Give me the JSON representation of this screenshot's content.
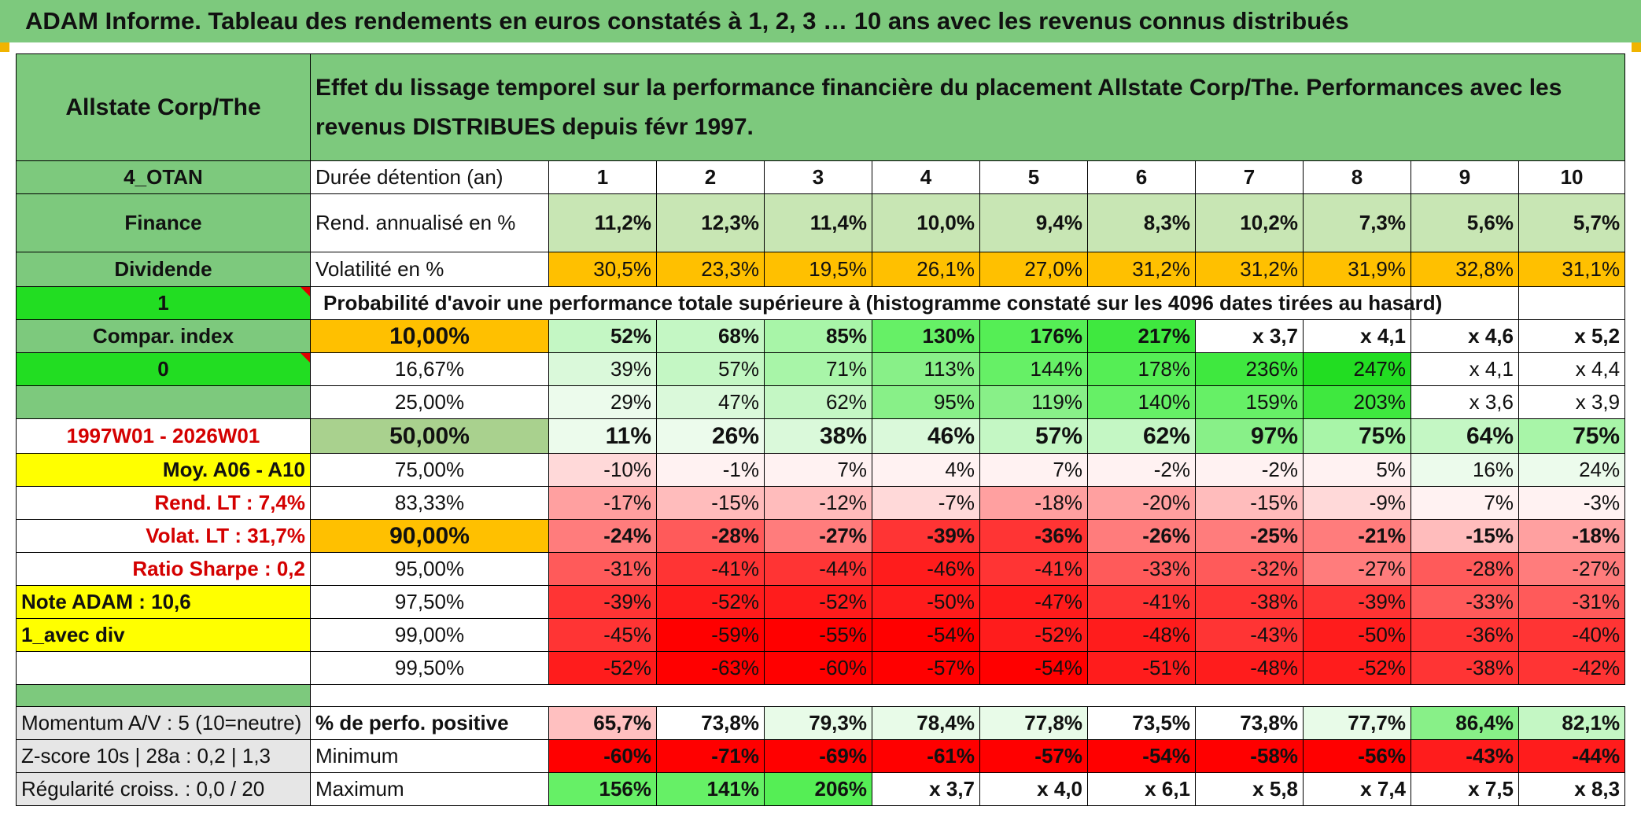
{
  "title": "ADAM Informe. Tableau des rendements en euros constatés à 1, 2, 3 … 10 ans avec les revenus connus distribués",
  "company": "Allstate Corp/The",
  "header_text": "Effet du lissage temporel sur la performance financière du placement Allstate Corp/The. Performances avec les revenus DISTRIBUES depuis févr 1997.",
  "side": {
    "code": "4_OTAN",
    "sector": "Finance",
    "type": "Dividende",
    "one": "1",
    "compar_label": "Compar. index",
    "zero": "0",
    "period": "1997W01 - 2026W01",
    "moy": "Moy. A06 - A10",
    "rend_lt": "Rend. LT :   7,4%",
    "volat_lt": "Volat. LT :   31,7%",
    "sharpe": "Ratio Sharpe :    0,2",
    "note": "Note ADAM : 10,6",
    "avec_div": "1_avec div",
    "momentum": "Momentum A/V : 5 (10=neutre)",
    "zscore": "Z-score 10s | 28a : 0,2 | 1,3",
    "regularite": "Régularité croiss. : 0,0 / 20"
  },
  "labels": {
    "duree": "Durée détention (an)",
    "rend": "Rend. annualisé en %",
    "volat": "Volatilité en %",
    "proba": "Probabilité d'avoir une performance totale supérieure à (histogramme constaté sur les 4096 dates tirées au hasard)",
    "perfo_pos": "% de perfo. positive",
    "minimum": "Minimum",
    "maximum": "Maximum"
  },
  "years": [
    "1",
    "2",
    "3",
    "4",
    "5",
    "6",
    "7",
    "8",
    "9",
    "10"
  ],
  "rend": [
    "11,2%",
    "12,3%",
    "11,4%",
    "10,0%",
    "9,4%",
    "8,3%",
    "10,2%",
    "7,3%",
    "5,6%",
    "5,7%"
  ],
  "volat": [
    "30,5%",
    "23,3%",
    "19,5%",
    "26,1%",
    "27,0%",
    "31,2%",
    "31,2%",
    "31,9%",
    "32,8%",
    "31,1%"
  ],
  "prob_rows": [
    {
      "label": "10,00%",
      "values": [
        "52%",
        "68%",
        "85%",
        "130%",
        "176%",
        "217%",
        "x 3,7",
        "x 4,1",
        "x 4,6",
        "x 5,2"
      ]
    },
    {
      "label": "16,67%",
      "values": [
        "39%",
        "57%",
        "71%",
        "113%",
        "144%",
        "178%",
        "236%",
        "247%",
        "x 4,1",
        "x 4,4"
      ]
    },
    {
      "label": "25,00%",
      "values": [
        "29%",
        "47%",
        "62%",
        "95%",
        "119%",
        "140%",
        "159%",
        "203%",
        "x 3,6",
        "x 3,9"
      ]
    },
    {
      "label": "50,00%",
      "values": [
        "11%",
        "26%",
        "38%",
        "46%",
        "57%",
        "62%",
        "97%",
        "75%",
        "64%",
        "75%"
      ]
    },
    {
      "label": "75,00%",
      "values": [
        "-10%",
        "-1%",
        "7%",
        "4%",
        "7%",
        "-2%",
        "-2%",
        "5%",
        "16%",
        "24%"
      ]
    },
    {
      "label": "83,33%",
      "values": [
        "-17%",
        "-15%",
        "-12%",
        "-7%",
        "-18%",
        "-20%",
        "-15%",
        "-9%",
        "7%",
        "-3%"
      ]
    },
    {
      "label": "90,00%",
      "values": [
        "-24%",
        "-28%",
        "-27%",
        "-39%",
        "-36%",
        "-26%",
        "-25%",
        "-21%",
        "-15%",
        "-18%"
      ]
    },
    {
      "label": "95,00%",
      "values": [
        "-31%",
        "-41%",
        "-44%",
        "-46%",
        "-41%",
        "-33%",
        "-32%",
        "-27%",
        "-28%",
        "-27%"
      ]
    },
    {
      "label": "97,50%",
      "values": [
        "-39%",
        "-52%",
        "-52%",
        "-50%",
        "-47%",
        "-41%",
        "-38%",
        "-39%",
        "-33%",
        "-31%"
      ]
    },
    {
      "label": "99,00%",
      "values": [
        "-45%",
        "-59%",
        "-55%",
        "-54%",
        "-52%",
        "-48%",
        "-43%",
        "-50%",
        "-36%",
        "-40%"
      ]
    },
    {
      "label": "99,50%",
      "values": [
        "-52%",
        "-63%",
        "-60%",
        "-57%",
        "-54%",
        "-51%",
        "-48%",
        "-52%",
        "-38%",
        "-42%"
      ]
    }
  ],
  "perfo_pos": [
    "65,7%",
    "73,8%",
    "79,3%",
    "78,4%",
    "77,8%",
    "73,5%",
    "73,8%",
    "77,7%",
    "86,4%",
    "82,1%"
  ],
  "minimum": [
    "-60%",
    "-71%",
    "-69%",
    "-61%",
    "-57%",
    "-54%",
    "-58%",
    "-56%",
    "-43%",
    "-44%"
  ],
  "maximum": [
    "156%",
    "141%",
    "206%",
    "x 3,7",
    "x 4,0",
    "x 6,1",
    "x 5,8",
    "x 7,4",
    "x 7,5",
    "x 8,3"
  ],
  "colors": {
    "header_green": "#7dc97d",
    "orange": "#ffc000",
    "bright_green": "#22dd22",
    "yellow": "#ffff00",
    "red_text": "#d40000"
  }
}
